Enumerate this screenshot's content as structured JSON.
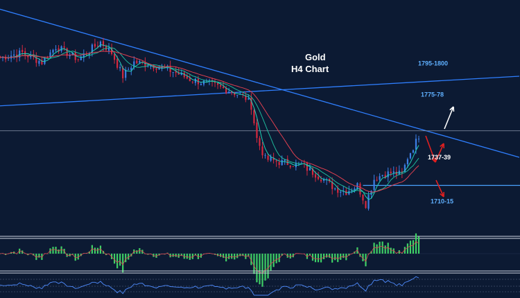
{
  "chart_data": {
    "type": "candlestick",
    "title": "Gold",
    "subtitle": "H4 Chart",
    "ylim": [
      1690,
      1830
    ],
    "xlim": [
      0,
      150
    ],
    "colors": {
      "background": "#0c1a33",
      "bull": "#3d7fe6",
      "bear": "#d6293f",
      "trendline": "#2f7fff",
      "ma_fast": "#22d2b8",
      "ma_slow": "#e04050",
      "hist_pos": "#3fd066",
      "hist_neg": "#3fd066",
      "osc": "#4f8cff",
      "arrow_up": "#ffffff",
      "arrow_red": "#e02020",
      "level_line": "#4aa3ff",
      "label_blue": "#5fb0ff",
      "label_white": "#ffffff"
    },
    "price_keypoints": [
      [
        0,
        1802
      ],
      [
        8,
        1805
      ],
      [
        15,
        1799
      ],
      [
        20,
        1809
      ],
      [
        28,
        1801
      ],
      [
        36,
        1812
      ],
      [
        40,
        1805
      ],
      [
        44,
        1790
      ],
      [
        48,
        1799
      ],
      [
        55,
        1797
      ],
      [
        62,
        1793
      ],
      [
        68,
        1788
      ],
      [
        75,
        1785
      ],
      [
        82,
        1781
      ],
      [
        88,
        1776
      ],
      [
        90,
        1771
      ],
      [
        92,
        1750
      ],
      [
        95,
        1737
      ],
      [
        100,
        1735
      ],
      [
        108,
        1733
      ],
      [
        115,
        1725
      ],
      [
        120,
        1718
      ],
      [
        124,
        1716
      ],
      [
        128,
        1720
      ],
      [
        131,
        1708
      ],
      [
        134,
        1724
      ],
      [
        137,
        1727
      ],
      [
        140,
        1728
      ],
      [
        144,
        1727
      ],
      [
        146,
        1738
      ],
      [
        149,
        1748
      ],
      [
        150,
        1752
      ]
    ],
    "levels": [
      {
        "label": "1795-1800",
        "value": 1797
      },
      {
        "label": "1775-78",
        "value": 1777
      },
      {
        "label": "1737-39",
        "value": 1738
      },
      {
        "label": "1710-15",
        "value": 1713
      }
    ],
    "horizontal_line": 1755,
    "support_line": 1720,
    "trendline_down": {
      "start": [
        -2,
        1834
      ],
      "end": [
        186,
        1738
      ]
    },
    "trendline_up": {
      "start": [
        0,
        1771
      ],
      "end": [
        186,
        1790
      ]
    }
  }
}
